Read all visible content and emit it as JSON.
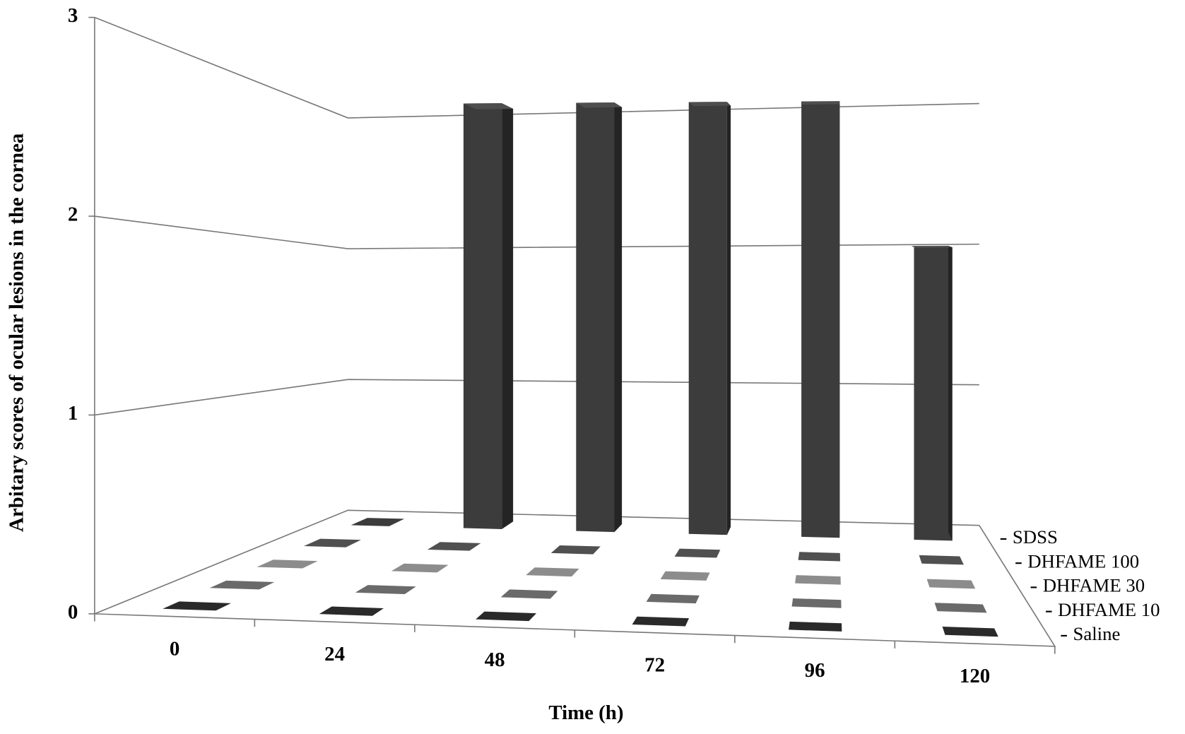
{
  "chart_data": {
    "type": "bar3d",
    "x_label": "Time (h)",
    "y_label": "Arbitary scores of ocular lesions in the cornea",
    "categories": [
      "0",
      "24",
      "48",
      "72",
      "96",
      "120"
    ],
    "series": [
      {
        "name": "Saline",
        "color": "#2a2a2a",
        "values": [
          0,
          0,
          0,
          0,
          0,
          0
        ]
      },
      {
        "name": "DHFAME 10",
        "color": "#6a6a6a",
        "values": [
          0,
          0,
          0,
          0,
          0,
          0
        ]
      },
      {
        "name": "DHFAME 30",
        "color": "#8c8c8c",
        "values": [
          0,
          0,
          0,
          0,
          0,
          0
        ]
      },
      {
        "name": "DHFAME 100",
        "color": "#505050",
        "values": [
          0,
          0,
          0,
          0,
          0,
          0
        ]
      },
      {
        "name": "SDSS",
        "color": "#3c3c3c",
        "values": [
          0,
          3,
          3,
          3,
          3,
          2
        ]
      }
    ],
    "ylim": [
      0,
      3
    ],
    "yticks": [
      0,
      1,
      2,
      3
    ],
    "grid": true
  }
}
